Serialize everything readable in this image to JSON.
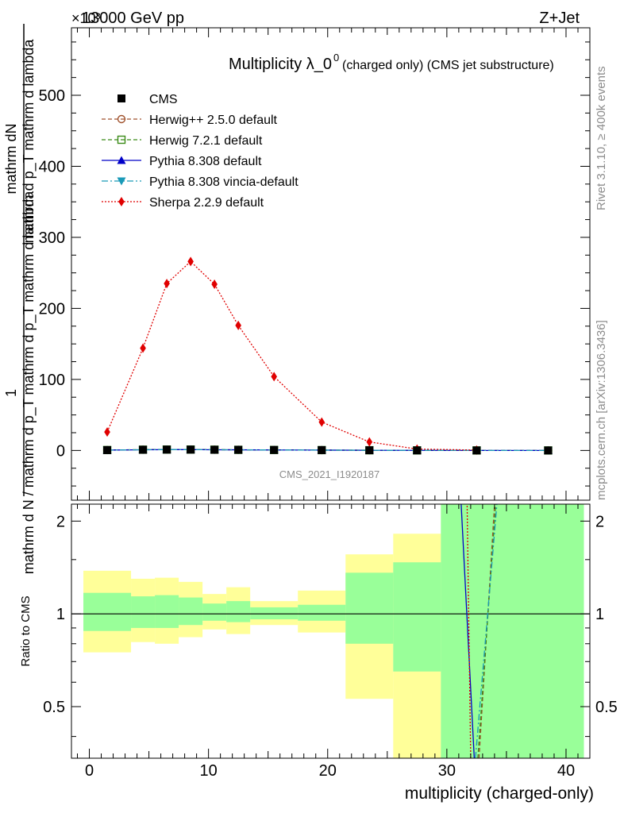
{
  "header": {
    "left_title": "13000 GeV pp",
    "right_title": "Z+Jet",
    "exponent_label": "×10³"
  },
  "side_labels": {
    "rivet": "Rivet 3.1.10, ≥ 400k events",
    "mcplots": "mcplots.cern.ch [arXiv:1306.3436]"
  },
  "chart_data": [
    {
      "type": "line",
      "title_main": "Multiplicity λ_0",
      "title_sup": "0",
      "title_rest": " (charged only) (CMS jet substructure)",
      "ylabel_top": "mathrm dN",
      "ylabel_mid": "mathrm d p_T mathrm d lambda",
      "ylabel_one": "1",
      "ylabel_bottom": "mathrm d N / mathrm d p_T mathrm d p_T mathrm d lambda",
      "watermark": "CMS_2021_I1920187",
      "ylim": [
        -70,
        595
      ],
      "yticks": [
        0,
        100,
        200,
        300,
        400,
        500
      ],
      "ytick_labels": [
        "0",
        "100",
        "200",
        "300",
        "400",
        "500"
      ],
      "x": [
        1.5,
        4.5,
        6.5,
        8.5,
        10.5,
        12.5,
        15.5,
        19.5,
        23.5,
        27.5,
        32.5,
        38.5
      ],
      "series": [
        {
          "name": "CMS",
          "style": "cms",
          "color": "#000000",
          "values": [
            0.5,
            1.0,
            1.2,
            1.2,
            1.0,
            0.9,
            0.7,
            0.5,
            0.3,
            0.1,
            0.02,
            0.01
          ]
        },
        {
          "name": "Herwig++ 2.5.0 default",
          "style": "herwigpp",
          "color": "#a0522d",
          "values": [
            0.6,
            1.1,
            1.3,
            1.3,
            1.1,
            0.9,
            0.7,
            0.5,
            0.3,
            0.1,
            0.03,
            0.01
          ]
        },
        {
          "name": "Herwig 7.2.1 default",
          "style": "herwig7",
          "color": "#3a8a17",
          "values": [
            0.6,
            1.1,
            1.3,
            1.3,
            1.1,
            0.9,
            0.7,
            0.5,
            0.3,
            0.1,
            0.03,
            0.01
          ]
        },
        {
          "name": "Pythia 8.308 default",
          "style": "pythia",
          "color": "#0000c8",
          "values": [
            0.5,
            1.0,
            1.2,
            1.2,
            1.0,
            0.9,
            0.7,
            0.5,
            0.3,
            0.1,
            0.02,
            0.01
          ]
        },
        {
          "name": "Pythia 8.308 vincia-default",
          "style": "vincia",
          "color": "#1a9ab8",
          "values": [
            0.5,
            1.0,
            1.2,
            1.2,
            1.0,
            0.9,
            0.7,
            0.5,
            0.3,
            0.1,
            0.02,
            0.01
          ]
        },
        {
          "name": "Sherpa 2.2.9 default",
          "style": "sherpa",
          "color": "#e00000",
          "values": [
            26,
            144,
            235,
            266,
            234,
            176,
            104,
            40,
            12,
            2,
            0.5,
            null
          ]
        }
      ]
    },
    {
      "type": "area",
      "ylabel": "Ratio to CMS",
      "xlabel": "multiplicity (charged-only)",
      "xlim": [
        -1.5,
        42
      ],
      "ylim": [
        0.34,
        2.27
      ],
      "xticks": [
        0,
        10,
        20,
        30,
        40
      ],
      "xtick_labels": [
        "0",
        "10",
        "20",
        "30",
        "40"
      ],
      "yticks": [
        0.5,
        1,
        2
      ],
      "ytick_labels": [
        "0.5",
        "1",
        "2"
      ],
      "bins": [
        {
          "lo": -0.5,
          "hi": 3.5,
          "green": [
            0.88,
            1.17
          ],
          "yellow": [
            0.75,
            1.38
          ]
        },
        {
          "lo": 3.5,
          "hi": 5.5,
          "green": [
            0.9,
            1.14
          ],
          "yellow": [
            0.81,
            1.3
          ]
        },
        {
          "lo": 5.5,
          "hi": 7.5,
          "green": [
            0.9,
            1.15
          ],
          "yellow": [
            0.8,
            1.31
          ]
        },
        {
          "lo": 7.5,
          "hi": 9.5,
          "green": [
            0.92,
            1.13
          ],
          "yellow": [
            0.84,
            1.27
          ]
        },
        {
          "lo": 9.5,
          "hi": 11.5,
          "green": [
            0.95,
            1.08
          ],
          "yellow": [
            0.89,
            1.16
          ]
        },
        {
          "lo": 11.5,
          "hi": 13.5,
          "green": [
            0.94,
            1.1
          ],
          "yellow": [
            0.86,
            1.22
          ]
        },
        {
          "lo": 13.5,
          "hi": 17.5,
          "green": [
            0.96,
            1.05
          ],
          "yellow": [
            0.92,
            1.1
          ]
        },
        {
          "lo": 17.5,
          "hi": 21.5,
          "green": [
            0.95,
            1.07
          ],
          "yellow": [
            0.87,
            1.19
          ]
        },
        {
          "lo": 21.5,
          "hi": 25.5,
          "green": [
            0.8,
            1.36
          ],
          "yellow": [
            0.53,
            1.56
          ]
        },
        {
          "lo": 25.5,
          "hi": 29.5,
          "green": [
            0.65,
            1.47
          ],
          "yellow": [
            0.34,
            1.82
          ]
        },
        {
          "lo": 29.5,
          "hi": 41.5,
          "green": [
            0.34,
            2.27
          ],
          "yellow": [
            0.34,
            2.27
          ]
        }
      ],
      "ratio_lines": [
        {
          "style": "herwigpp",
          "color": "#a0522d",
          "x": [
            32.7,
            34.0
          ],
          "y": [
            0.34,
            2.27
          ]
        },
        {
          "style": "herwig7",
          "color": "#3a8a17",
          "x": [
            32.6,
            34.1
          ],
          "y": [
            0.34,
            2.27
          ]
        },
        {
          "style": "pythia",
          "color": "#0000c8",
          "x": [
            32.3,
            31.2
          ],
          "y": [
            0.34,
            2.27
          ]
        },
        {
          "style": "vincia",
          "color": "#1a9ab8",
          "x": [
            32.4,
            34.2
          ],
          "y": [
            0.34,
            2.27
          ]
        },
        {
          "style": "sherpa",
          "color": "#e00000",
          "x": [
            32.0,
            31.7
          ],
          "y": [
            0.34,
            2.27
          ]
        }
      ]
    }
  ]
}
